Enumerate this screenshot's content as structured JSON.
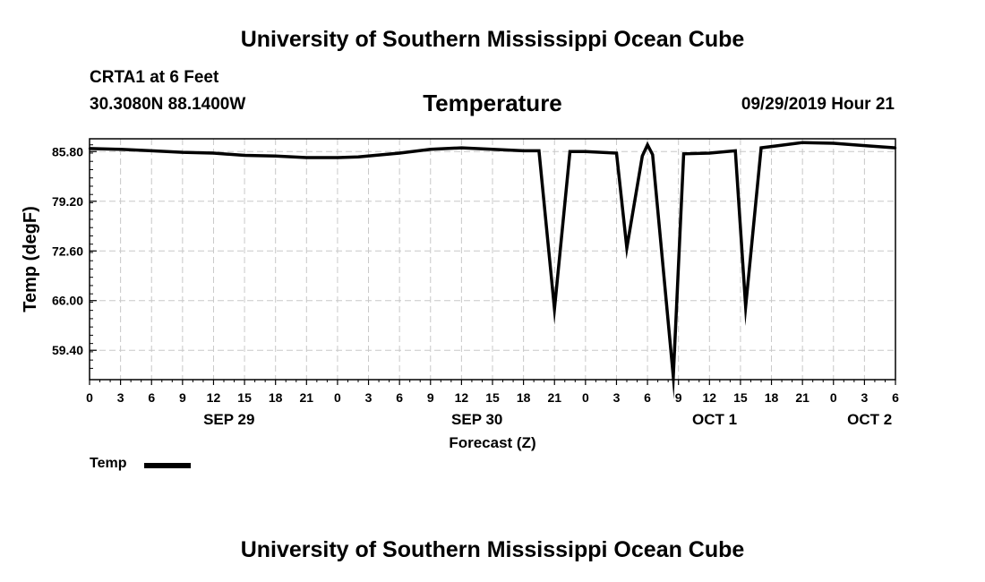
{
  "header": {
    "title_top": "University of Southern Mississippi Ocean Cube",
    "station": "CRTA1 at 6 Feet",
    "coords": "30.3080N 88.1400W",
    "variable": "Temperature",
    "issued": "09/29/2019 Hour 21",
    "title_bottom": "University of Southern Mississippi Ocean Cube"
  },
  "chart_data": {
    "type": "line",
    "title": "Temperature",
    "xlabel": "Forecast (Z)",
    "ylabel": "Temp (degF)",
    "x_units": "hours from SEP 29 00Z",
    "xlim": [
      0,
      78
    ],
    "ylim": [
      55.5,
      87.5
    ],
    "grid": true,
    "y_ticks": [
      {
        "value": 59.4,
        "label": "59.40"
      },
      {
        "value": 66.0,
        "label": "66.00"
      },
      {
        "value": 72.6,
        "label": "72.60"
      },
      {
        "value": 79.2,
        "label": "79.20"
      },
      {
        "value": 85.8,
        "label": "85.80"
      }
    ],
    "x_ticks": [
      {
        "hour": 0,
        "label": "0"
      },
      {
        "hour": 3,
        "label": "3"
      },
      {
        "hour": 6,
        "label": "6"
      },
      {
        "hour": 9,
        "label": "9"
      },
      {
        "hour": 12,
        "label": "12"
      },
      {
        "hour": 15,
        "label": "15"
      },
      {
        "hour": 18,
        "label": "18"
      },
      {
        "hour": 21,
        "label": "21"
      },
      {
        "hour": 24,
        "label": "0"
      },
      {
        "hour": 27,
        "label": "3"
      },
      {
        "hour": 30,
        "label": "6"
      },
      {
        "hour": 33,
        "label": "9"
      },
      {
        "hour": 36,
        "label": "12"
      },
      {
        "hour": 39,
        "label": "15"
      },
      {
        "hour": 42,
        "label": "18"
      },
      {
        "hour": 45,
        "label": "21"
      },
      {
        "hour": 48,
        "label": "0"
      },
      {
        "hour": 51,
        "label": "3"
      },
      {
        "hour": 54,
        "label": "6"
      },
      {
        "hour": 57,
        "label": "9"
      },
      {
        "hour": 60,
        "label": "12"
      },
      {
        "hour": 63,
        "label": "15"
      },
      {
        "hour": 66,
        "label": "18"
      },
      {
        "hour": 69,
        "label": "21"
      },
      {
        "hour": 72,
        "label": "0"
      },
      {
        "hour": 75,
        "label": "3"
      },
      {
        "hour": 78,
        "label": "6"
      }
    ],
    "date_labels": [
      {
        "hour": 13.5,
        "label": "SEP 29"
      },
      {
        "hour": 37.5,
        "label": "SEP 30"
      },
      {
        "hour": 60.5,
        "label": "OCT 1"
      },
      {
        "hour": 75.5,
        "label": "OCT 2"
      }
    ],
    "legend": {
      "placement": "bottom-left",
      "entries": [
        "Temp"
      ]
    },
    "series": [
      {
        "name": "Temp",
        "x": [
          0,
          3,
          6,
          9,
          12,
          15,
          18,
          21,
          24,
          26,
          30,
          33,
          36,
          39,
          42,
          43.5,
          45,
          46.5,
          48,
          51,
          52,
          53.5,
          54,
          54.5,
          56.5,
          57.5,
          60,
          62.5,
          63.5,
          65,
          69,
          72,
          75,
          78
        ],
        "y": [
          86.2,
          86.1,
          85.9,
          85.7,
          85.6,
          85.3,
          85.2,
          85.0,
          85.0,
          85.1,
          85.6,
          86.1,
          86.3,
          86.1,
          85.9,
          85.9,
          64.9,
          85.8,
          85.8,
          85.6,
          73.0,
          85.2,
          86.7,
          85.4,
          55.9,
          85.5,
          85.6,
          85.9,
          65.2,
          86.3,
          87.0,
          86.9,
          86.6,
          86.3
        ]
      }
    ]
  }
}
